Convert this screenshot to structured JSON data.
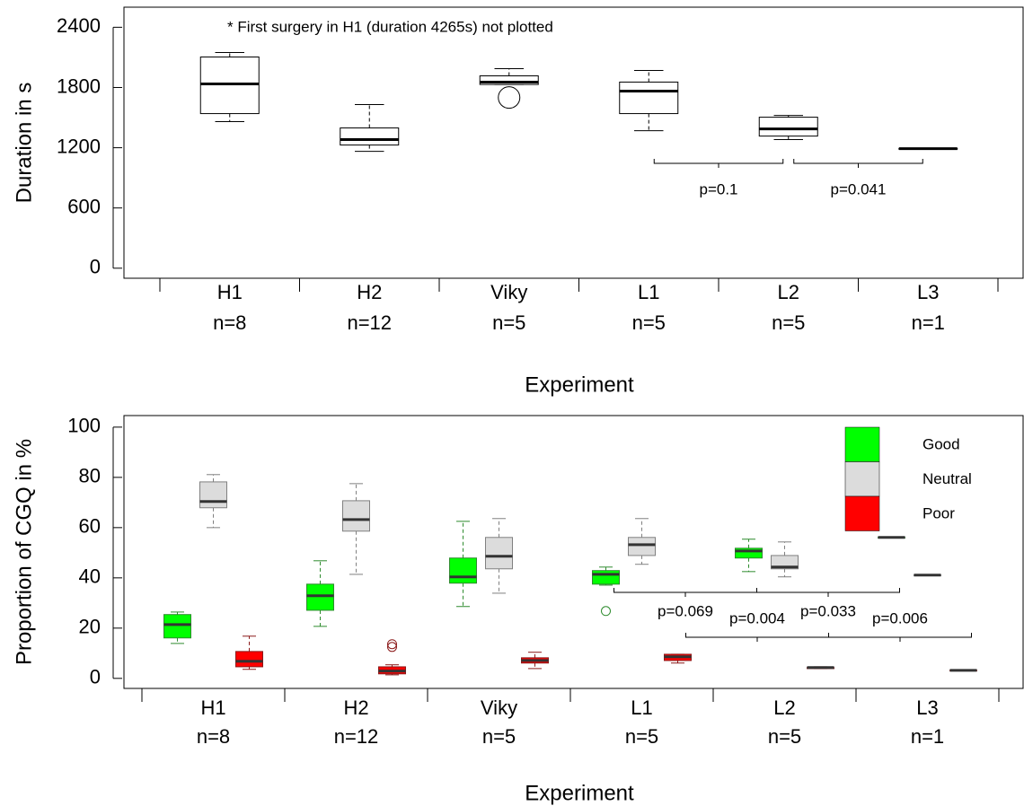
{
  "chart_data": [
    {
      "type": "box",
      "footnote": "* First surgery in H1 (duration 4265s) not plotted",
      "ylabel": "Duration in s",
      "xlabel": "Experiment",
      "categories": [
        "H1",
        "H2",
        "Viky",
        "L1",
        "L2",
        "L3"
      ],
      "category_counts": [
        "n=8",
        "n=12",
        "n=5",
        "n=5",
        "n=5",
        "n=1"
      ],
      "ylim": [
        -100,
        2600
      ],
      "yticks": [
        0,
        600,
        1200,
        1800,
        2400
      ],
      "color": "#ffffff",
      "edge": "#000000",
      "values": [
        {
          "whislo": 1460,
          "q1": 1540,
          "med": 1836,
          "q3": 2104,
          "whishi": 2149,
          "fliers": []
        },
        {
          "whislo": 1164,
          "q1": 1227,
          "med": 1281,
          "q3": 1397,
          "whishi": 1630,
          "fliers": []
        },
        {
          "whislo": 1830,
          "q1": 1830,
          "med": 1854,
          "q3": 1916,
          "whishi": 1988,
          "fliers": [
            1700
          ]
        },
        {
          "whislo": 1370,
          "q1": 1540,
          "med": 1764,
          "q3": 1854,
          "whishi": 1970,
          "fliers": []
        },
        {
          "whislo": 1281,
          "q1": 1316,
          "med": 1388,
          "q3": 1504,
          "whishi": 1522,
          "fliers": []
        },
        {
          "whislo": 1191,
          "q1": 1191,
          "med": 1191,
          "q3": 1191,
          "whishi": 1191,
          "fliers": []
        }
      ],
      "annotations": [
        {
          "text": "p=0.1",
          "from": "L1",
          "to": "L2"
        },
        {
          "text": "p=0.041",
          "from": "L2",
          "to": "L3"
        }
      ]
    },
    {
      "type": "box",
      "ylabel": "Proportion of CGQ in %",
      "xlabel": "Experiment",
      "categories": [
        "H1",
        "H2",
        "Viky",
        "L1",
        "L2",
        "L3"
      ],
      "category_counts": [
        "n=8",
        "n=12",
        "n=5",
        "n=5",
        "n=5",
        "n=1"
      ],
      "ylim": [
        -4,
        104.6
      ],
      "yticks": [
        0,
        20,
        40,
        60,
        80,
        100
      ],
      "legend": "top-right",
      "series": [
        {
          "name": "Good",
          "color": "#00ff00",
          "edge": "#2e8b2e",
          "values": [
            {
              "whislo": 13.9,
              "q1": 16.1,
              "med": 21.4,
              "q3": 25.4,
              "whishi": 26.4,
              "fliers": []
            },
            {
              "whislo": 20.7,
              "q1": 27.1,
              "med": 32.9,
              "q3": 37.5,
              "whishi": 46.8,
              "fliers": []
            },
            {
              "whislo": 28.6,
              "q1": 37.9,
              "med": 40.4,
              "q3": 47.9,
              "whishi": 62.5,
              "fliers": []
            },
            {
              "whislo": 37.1,
              "q1": 37.5,
              "med": 41.4,
              "q3": 42.9,
              "whishi": 44.3,
              "fliers": [
                26.8
              ]
            },
            {
              "whislo": 42.5,
              "q1": 47.9,
              "med": 50.7,
              "q3": 51.8,
              "whishi": 55.4,
              "fliers": []
            },
            {
              "whislo": 56.1,
              "q1": 56.1,
              "med": 56.1,
              "q3": 56.1,
              "whishi": 56.1,
              "fliers": []
            }
          ]
        },
        {
          "name": "Neutral",
          "color": "#dcdcdc",
          "edge": "#808080",
          "values": [
            {
              "whislo": 60,
              "q1": 67.9,
              "med": 70.4,
              "q3": 78.2,
              "whishi": 81.1,
              "fliers": []
            },
            {
              "whislo": 41.4,
              "q1": 58.6,
              "med": 63.2,
              "q3": 70.7,
              "whishi": 77.5,
              "fliers": []
            },
            {
              "whislo": 33.9,
              "q1": 43.6,
              "med": 48.6,
              "q3": 56.1,
              "whishi": 63.6,
              "fliers": []
            },
            {
              "whislo": 45.4,
              "q1": 48.9,
              "med": 53.2,
              "q3": 56.1,
              "whishi": 63.6,
              "fliers": []
            },
            {
              "whislo": 40.4,
              "q1": 43.6,
              "med": 44.3,
              "q3": 48.9,
              "whishi": 54.3,
              "fliers": []
            },
            {
              "whislo": 41.1,
              "q1": 41.1,
              "med": 41.1,
              "q3": 41.1,
              "whishi": 41.1,
              "fliers": []
            }
          ]
        },
        {
          "name": "Poor",
          "color": "#ff0000",
          "edge": "#8b1a1a",
          "values": [
            {
              "whislo": 3.6,
              "q1": 4.6,
              "med": 6.8,
              "q3": 10.7,
              "whishi": 16.8,
              "fliers": []
            },
            {
              "whislo": 1.4,
              "q1": 1.8,
              "med": 2.9,
              "q3": 4.6,
              "whishi": 5.4,
              "fliers": [
                13.6,
                12.5
              ]
            },
            {
              "whislo": 3.9,
              "q1": 6.1,
              "med": 7.1,
              "q3": 8.2,
              "whishi": 10.4,
              "fliers": []
            },
            {
              "whislo": 6.1,
              "q1": 7.1,
              "med": 8.6,
              "q3": 9.6,
              "whishi": 9.6,
              "fliers": []
            },
            {
              "whislo": 3.9,
              "q1": 3.9,
              "med": 4.3,
              "q3": 4.3,
              "whishi": 4.6,
              "fliers": []
            },
            {
              "whislo": 3.2,
              "q1": 3.2,
              "med": 3.2,
              "q3": 3.2,
              "whishi": 3.2,
              "fliers": []
            }
          ]
        }
      ],
      "annotations": [
        {
          "text": "p=0.069",
          "series": "Good",
          "from": "L1",
          "to": "L2"
        },
        {
          "text": "p=0.004",
          "series": "Poor",
          "from": "L1",
          "to": "L2"
        },
        {
          "text": "p=0.033",
          "series": "Good",
          "from": "L2",
          "to": "L3"
        },
        {
          "text": "p=0.006",
          "series": "Poor",
          "from": "L2",
          "to": "L3"
        }
      ]
    }
  ]
}
